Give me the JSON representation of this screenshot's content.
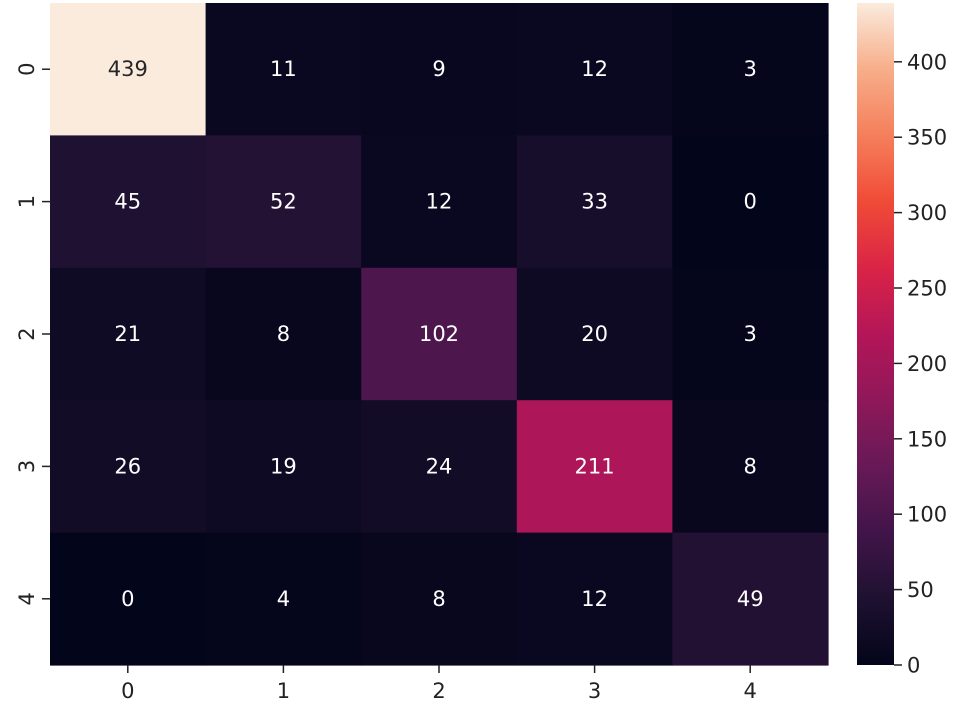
{
  "chart_data": {
    "type": "heatmap",
    "title": "",
    "xlabel": "",
    "ylabel": "",
    "x_categories": [
      "0",
      "1",
      "2",
      "3",
      "4"
    ],
    "y_categories": [
      "0",
      "1",
      "2",
      "3",
      "4"
    ],
    "values": [
      [
        439,
        11,
        9,
        12,
        3
      ],
      [
        45,
        52,
        12,
        33,
        0
      ],
      [
        21,
        8,
        102,
        20,
        3
      ],
      [
        26,
        19,
        24,
        211,
        8
      ],
      [
        0,
        4,
        8,
        12,
        49
      ]
    ],
    "colormap": "rocket",
    "vmin": 0,
    "vmax": 439,
    "colorbar": {
      "ticks": [
        0,
        50,
        100,
        150,
        200,
        250,
        300,
        350,
        400
      ],
      "labels": [
        "0",
        "50",
        "100",
        "150",
        "200",
        "250",
        "300",
        "350",
        "400"
      ]
    },
    "annotated": true,
    "grid": false,
    "legend": "none"
  }
}
